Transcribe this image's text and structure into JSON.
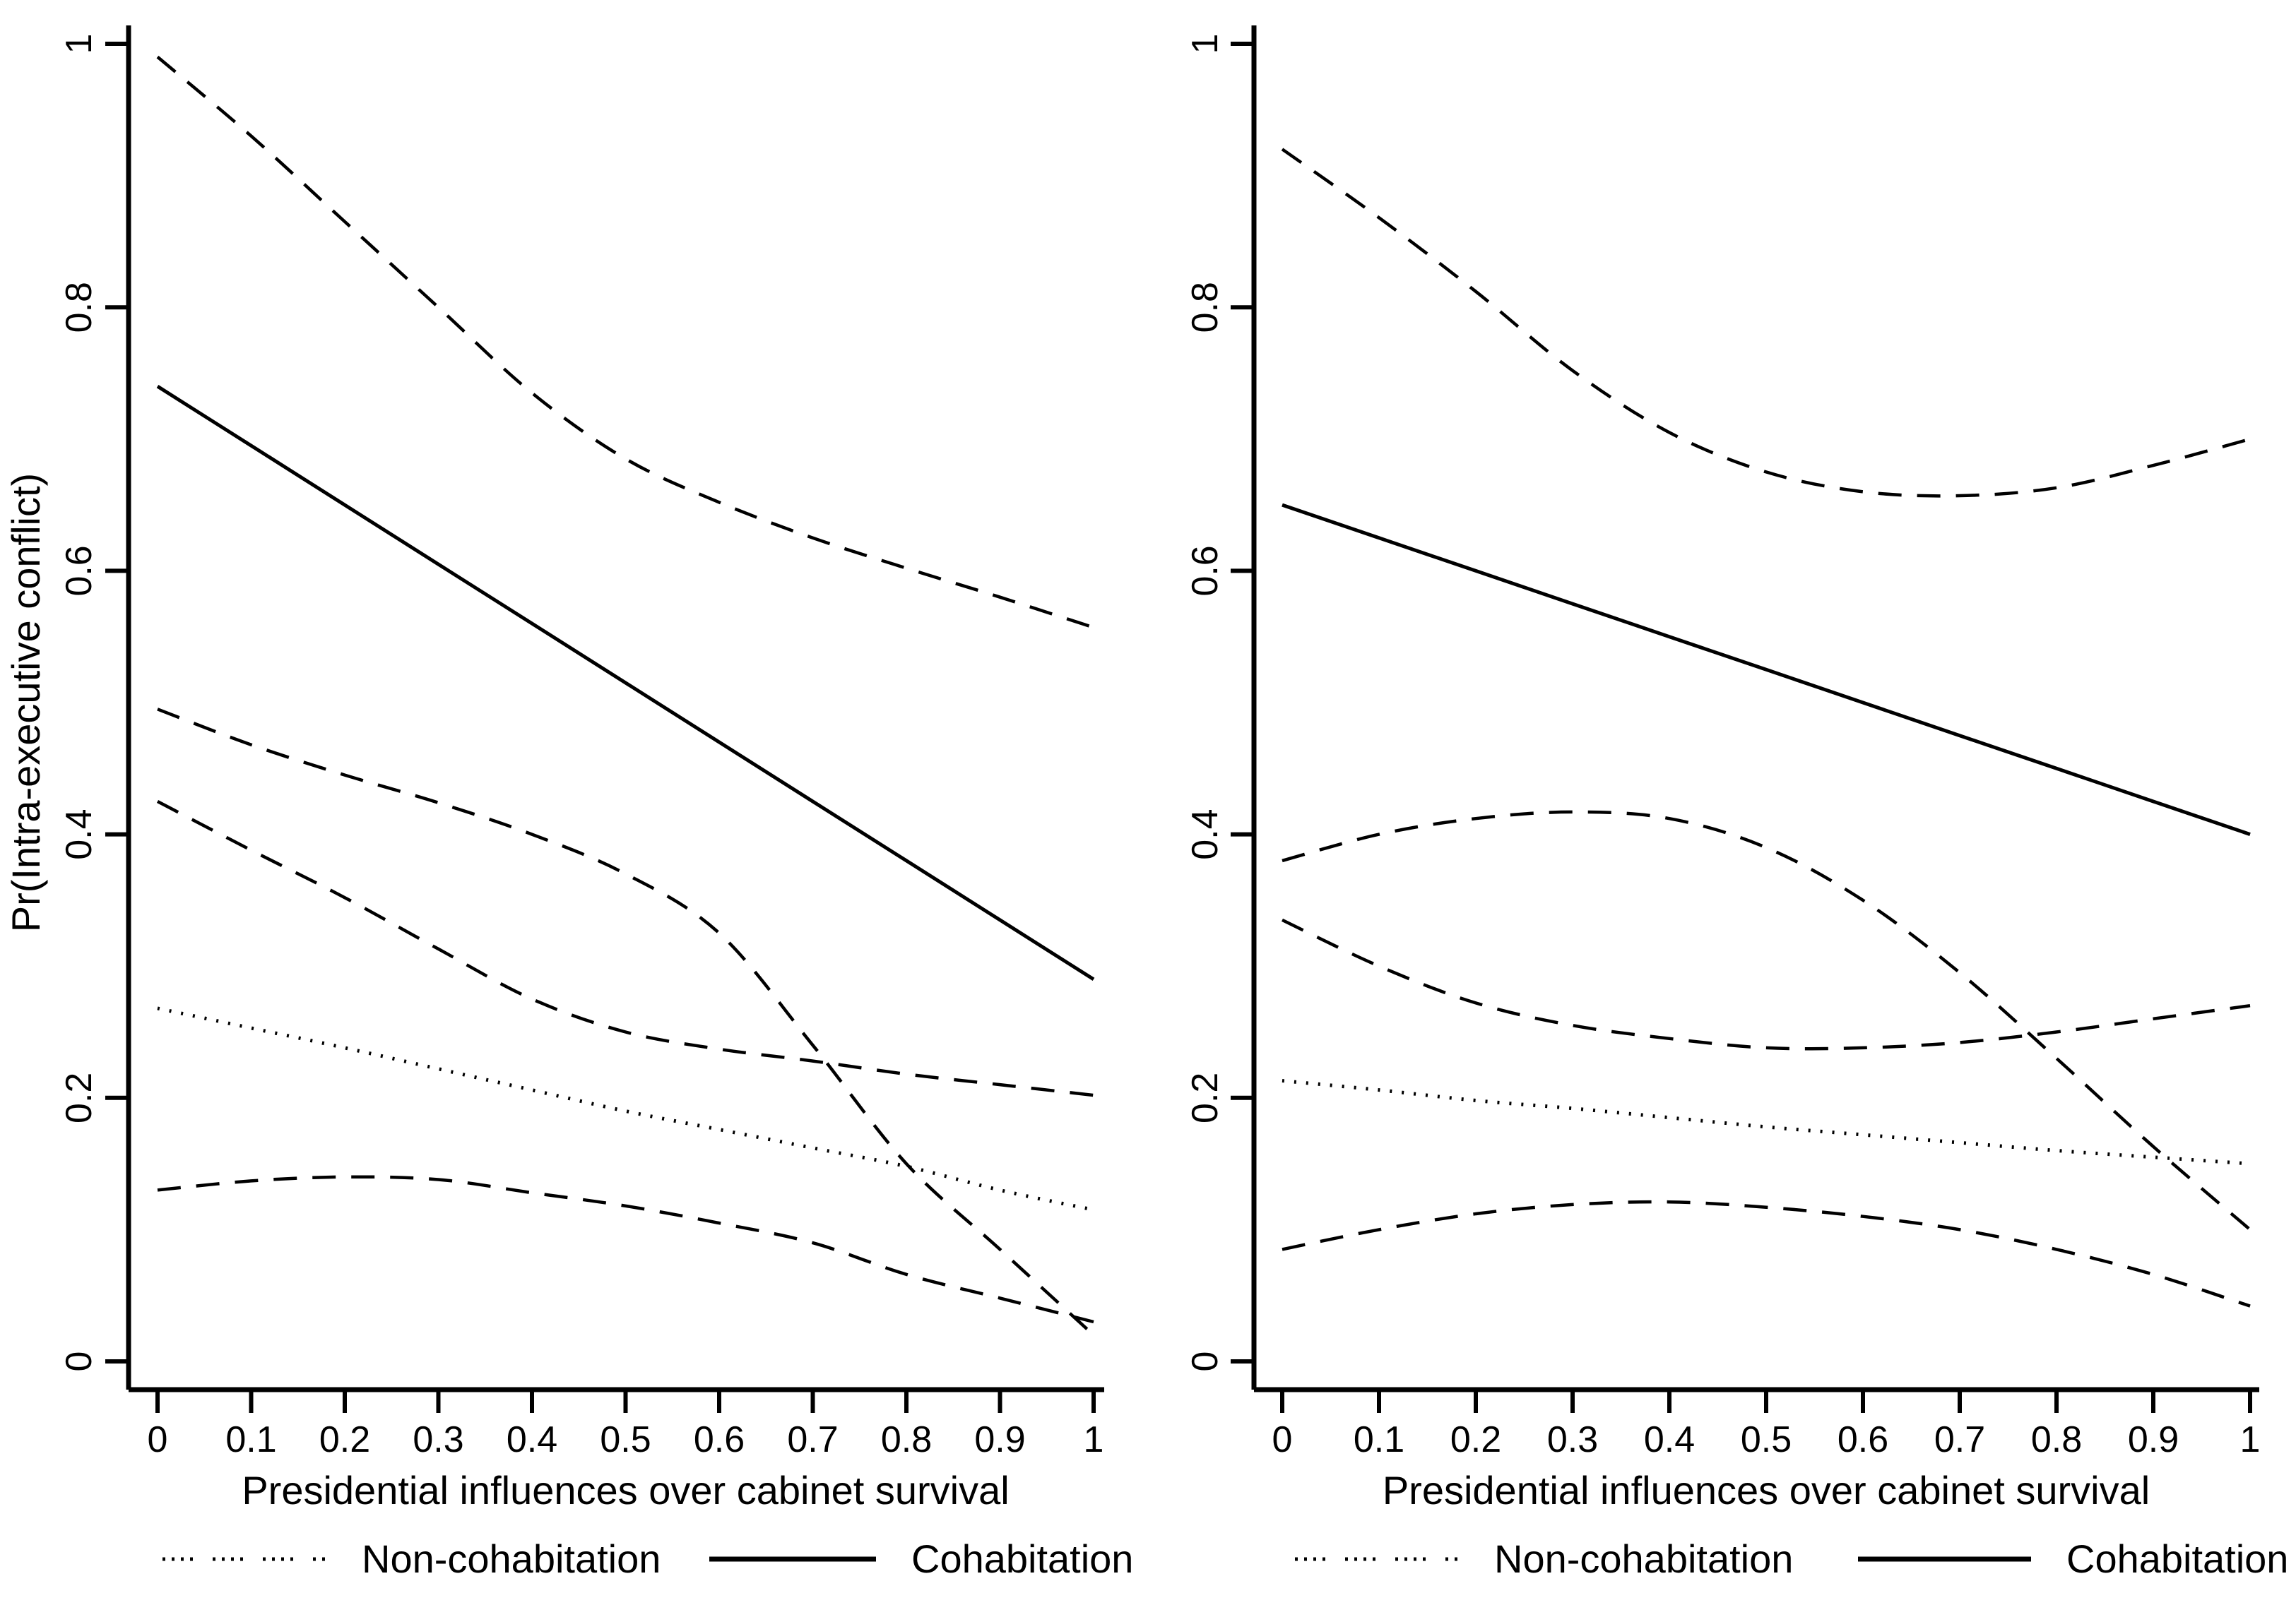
{
  "figure": {
    "background": "#ffffff",
    "ink_color": "#000000"
  },
  "chart_data": [
    {
      "panel": "left",
      "type": "line",
      "title": "",
      "xlabel": "Presidential influences over cabinet survival",
      "ylabel": "Pr(Intra-executive conflict)",
      "xlim": [
        0,
        1
      ],
      "ylim": [
        0,
        1
      ],
      "grid": false,
      "x": [
        0,
        0.1,
        0.2,
        0.3,
        0.4,
        0.5,
        0.6,
        0.7,
        0.8,
        0.9,
        1
      ],
      "xtick_labels": [
        "0",
        "0.1",
        "0.2",
        "0.3",
        "0.4",
        "0.5",
        "0.6",
        "0.7",
        "0.8",
        "0.9",
        "1"
      ],
      "ytick_values": [
        0,
        0.2,
        0.4,
        0.6,
        0.8,
        1
      ],
      "ytick_labels": [
        "0",
        "0.2",
        "0.4",
        "0.6",
        "0.8",
        "1"
      ],
      "series": [
        {
          "name": "cohabitation-upper-ci",
          "group": "Cohabitation",
          "role": "upper-95-ci",
          "style": "dashed",
          "values": [
            0.99,
            0.93,
            0.865,
            0.8,
            0.735,
            0.685,
            0.652,
            0.625,
            0.602,
            0.58,
            0.557
          ]
        },
        {
          "name": "cohabitation",
          "group": "Cohabitation",
          "role": "point-estimate",
          "style": "solid",
          "values": [
            0.74,
            0.695,
            0.65,
            0.605,
            0.56,
            0.515,
            0.47,
            0.425,
            0.38,
            0.335,
            0.29
          ]
        },
        {
          "name": "cohabitation-lower-ci",
          "group": "Cohabitation",
          "role": "lower-95-ci",
          "style": "dashed",
          "values": [
            0.495,
            0.468,
            0.445,
            0.424,
            0.4,
            0.37,
            0.325,
            0.24,
            0.15,
            0.085,
            0.02
          ]
        },
        {
          "name": "non-cohabitation-upper-ci",
          "group": "Non-cohabitation",
          "role": "upper-95-ci",
          "style": "dashed",
          "values": [
            0.425,
            0.388,
            0.352,
            0.313,
            0.275,
            0.25,
            0.237,
            0.228,
            0.218,
            0.21,
            0.202
          ]
        },
        {
          "name": "non-cohabitation",
          "group": "Non-cohabitation",
          "role": "point-estimate",
          "style": "dotted",
          "values": [
            0.268,
            0.253,
            0.238,
            0.222,
            0.206,
            0.19,
            0.176,
            0.162,
            0.148,
            0.13,
            0.115
          ]
        },
        {
          "name": "non-cohabitation-lower-ci",
          "group": "Non-cohabitation",
          "role": "lower-95-ci",
          "style": "dashed",
          "values": [
            0.13,
            0.137,
            0.14,
            0.138,
            0.128,
            0.118,
            0.105,
            0.09,
            0.066,
            0.048,
            0.03
          ]
        }
      ],
      "legend": {
        "position": "bottom",
        "entries": [
          {
            "label": "Non-cohabitation",
            "style": "dotted"
          },
          {
            "label": "Cohabitation",
            "style": "solid"
          }
        ]
      }
    },
    {
      "panel": "right",
      "type": "line",
      "title": "",
      "xlabel": "Presidential influences over cabinet survival",
      "ylabel": "Pr(Intra-executive conflict)",
      "xlim": [
        0,
        1
      ],
      "ylim": [
        0,
        1
      ],
      "grid": false,
      "x": [
        0,
        0.1,
        0.2,
        0.3,
        0.4,
        0.5,
        0.6,
        0.7,
        0.8,
        0.9,
        1
      ],
      "xtick_labels": [
        "0",
        "0.1",
        "0.2",
        "0.3",
        "0.4",
        "0.5",
        "0.6",
        "0.7",
        "0.8",
        "0.9",
        "1"
      ],
      "ytick_values": [
        0,
        0.2,
        0.4,
        0.6,
        0.8,
        1
      ],
      "ytick_labels": [
        "0",
        "0.2",
        "0.4",
        "0.6",
        "0.8",
        "1"
      ],
      "series": [
        {
          "name": "cohabitation-upper-ci",
          "group": "Cohabitation",
          "role": "upper-95-ci",
          "style": "dashed",
          "values": [
            0.92,
            0.868,
            0.812,
            0.752,
            0.705,
            0.675,
            0.66,
            0.657,
            0.663,
            0.68,
            0.7
          ]
        },
        {
          "name": "cohabitation",
          "group": "Cohabitation",
          "role": "point-estimate",
          "style": "solid",
          "values": [
            0.65,
            0.625,
            0.6,
            0.575,
            0.55,
            0.525,
            0.5,
            0.475,
            0.45,
            0.425,
            0.4
          ]
        },
        {
          "name": "cohabitation-lower-ci",
          "group": "Cohabitation",
          "role": "lower-95-ci",
          "style": "dashed",
          "values": [
            0.38,
            0.4,
            0.412,
            0.417,
            0.412,
            0.39,
            0.35,
            0.295,
            0.23,
            0.163,
            0.1
          ]
        },
        {
          "name": "non-cohabitation-upper-ci",
          "group": "Non-cohabitation",
          "role": "upper-95-ci",
          "style": "dashed",
          "values": [
            0.335,
            0.3,
            0.272,
            0.255,
            0.245,
            0.238,
            0.238,
            0.242,
            0.25,
            0.26,
            0.27
          ]
        },
        {
          "name": "non-cohabitation",
          "group": "Non-cohabitation",
          "role": "point-estimate",
          "style": "dotted",
          "values": [
            0.213,
            0.206,
            0.198,
            0.192,
            0.185,
            0.178,
            0.172,
            0.166,
            0.16,
            0.155,
            0.15
          ]
        },
        {
          "name": "non-cohabitation-lower-ci",
          "group": "Non-cohabitation",
          "role": "lower-95-ci",
          "style": "dashed",
          "values": [
            0.085,
            0.1,
            0.112,
            0.119,
            0.121,
            0.117,
            0.11,
            0.1,
            0.085,
            0.066,
            0.042
          ]
        }
      ],
      "legend": {
        "position": "bottom",
        "entries": [
          {
            "label": "Non-cohabitation",
            "style": "dotted"
          },
          {
            "label": "Cohabitation",
            "style": "solid"
          }
        ]
      }
    }
  ]
}
